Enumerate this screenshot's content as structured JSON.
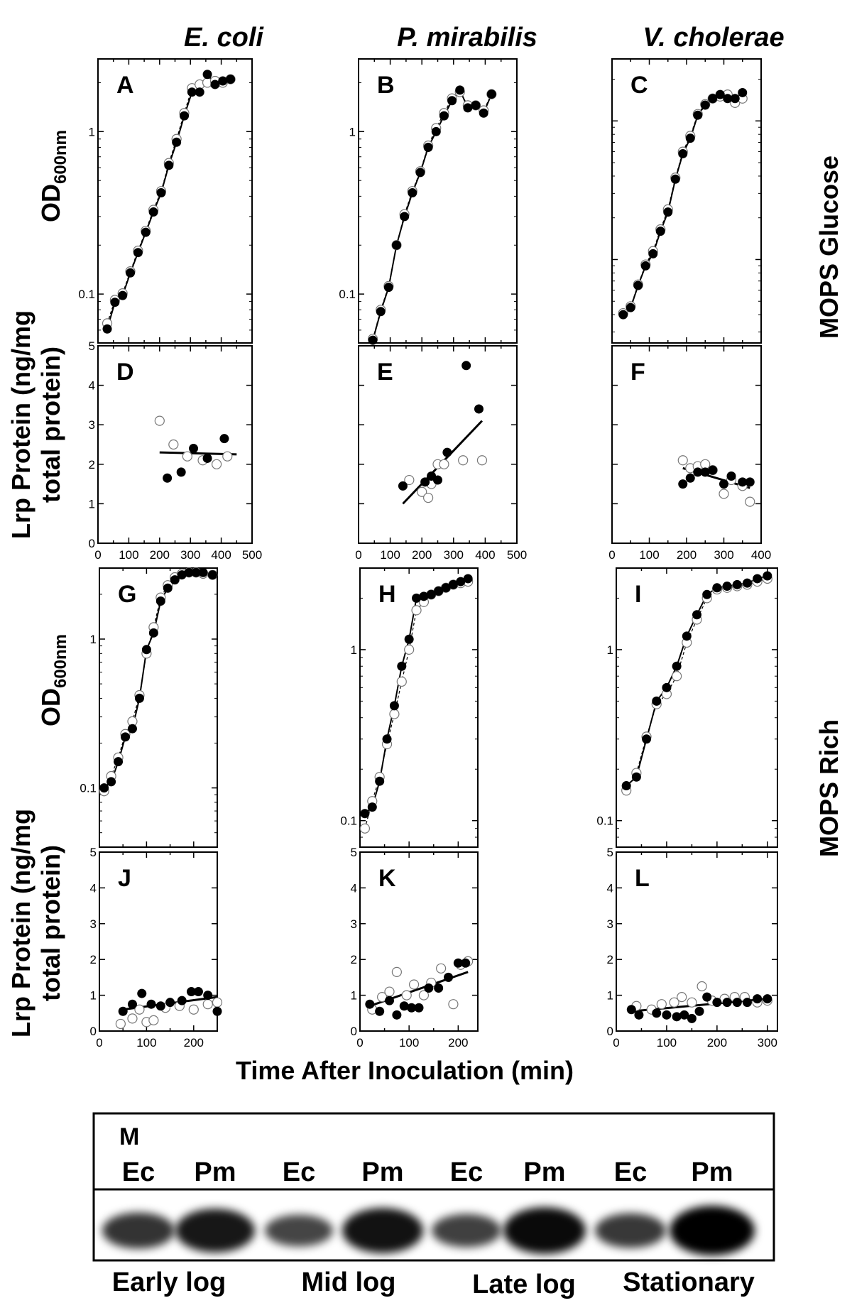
{
  "column_titles": [
    "E. coli",
    "P. mirabilis",
    "V. cholerae"
  ],
  "row_titles": {
    "glucose": "MOPS Glucose",
    "rich": "MOPS Rich"
  },
  "y_labels": {
    "od_main": "OD",
    "od_sub": "600nm",
    "lrp_line1": "Lrp Protein (ng/mg",
    "lrp_line2": "total protein)"
  },
  "x_axis_title": "Time After Inoculation (min)",
  "chart_data": [
    {
      "panel": "A",
      "type": "line",
      "group": "od",
      "medium": "MOPS Glucose",
      "organism": "E. coli",
      "yscale": "log",
      "xlim": [
        0,
        500
      ],
      "ylim": [
        0.05,
        2.8
      ],
      "ytick_labels": [
        "0.1",
        "1"
      ],
      "ytick_values": [
        0.1,
        1
      ],
      "series": [
        {
          "name": "filled",
          "x": [
            30,
            55,
            80,
            105,
            130,
            155,
            180,
            205,
            230,
            255,
            280,
            305,
            330,
            355,
            380,
            405,
            430
          ],
          "y": [
            0.061,
            0.089,
            0.098,
            0.135,
            0.18,
            0.24,
            0.32,
            0.42,
            0.62,
            0.86,
            1.25,
            1.75,
            1.75,
            2.25,
            1.95,
            2.05,
            2.1
          ]
        },
        {
          "name": "open",
          "x": [
            30,
            55,
            80,
            105,
            130,
            155,
            180,
            205,
            230,
            255,
            280,
            305,
            330,
            355,
            380,
            405,
            430
          ],
          "y": [
            0.066,
            0.092,
            0.101,
            0.138,
            0.185,
            0.245,
            0.33,
            0.43,
            0.64,
            0.9,
            1.3,
            1.85,
            1.95,
            2.0,
            2.05,
            2.0,
            2.1
          ]
        }
      ]
    },
    {
      "panel": "B",
      "type": "line",
      "group": "od",
      "medium": "MOPS Glucose",
      "organism": "P. mirabilis",
      "yscale": "log",
      "xlim": [
        0,
        500
      ],
      "ylim": [
        0.05,
        2.8
      ],
      "ytick_labels": [
        "0.1",
        "1"
      ],
      "ytick_values": [
        0.1,
        1
      ],
      "series": [
        {
          "name": "filled",
          "x": [
            45,
            70,
            95,
            120,
            145,
            170,
            195,
            220,
            245,
            270,
            295,
            320,
            345,
            370,
            395,
            420
          ],
          "y": [
            0.052,
            0.078,
            0.11,
            0.2,
            0.3,
            0.42,
            0.56,
            0.8,
            1.0,
            1.25,
            1.55,
            1.8,
            1.4,
            1.45,
            1.3,
            1.7
          ]
        },
        {
          "name": "open",
          "x": [
            45,
            70,
            95,
            120,
            145,
            170,
            195,
            220,
            245,
            270,
            295,
            320,
            345,
            370,
            395,
            420
          ],
          "y": [
            0.053,
            0.08,
            0.112,
            0.2,
            0.31,
            0.43,
            0.57,
            0.82,
            1.05,
            1.3,
            1.6,
            1.75,
            1.45,
            1.45,
            1.35,
            1.7
          ]
        }
      ]
    },
    {
      "panel": "C",
      "type": "line",
      "group": "od",
      "medium": "MOPS Glucose",
      "organism": "V. cholerae",
      "yscale": "log",
      "xlim": [
        0,
        400
      ],
      "ylim": [
        0.025,
        2.8
      ],
      "ytick_labels": [],
      "ytick_values": [
        0.1,
        1
      ],
      "series": [
        {
          "name": "filled",
          "x": [
            30,
            50,
            70,
            90,
            110,
            130,
            150,
            170,
            190,
            210,
            230,
            250,
            270,
            290,
            310,
            330,
            350
          ],
          "y": [
            0.04,
            0.045,
            0.065,
            0.09,
            0.11,
            0.16,
            0.22,
            0.38,
            0.58,
            0.75,
            1.1,
            1.3,
            1.45,
            1.55,
            1.45,
            1.45,
            1.6
          ]
        },
        {
          "name": "open",
          "x": [
            30,
            50,
            70,
            90,
            110,
            130,
            150,
            170,
            190,
            210,
            230,
            250,
            270,
            290,
            310,
            330,
            350
          ],
          "y": [
            0.041,
            0.046,
            0.066,
            0.092,
            0.115,
            0.165,
            0.23,
            0.39,
            0.6,
            0.78,
            1.12,
            1.32,
            1.45,
            1.5,
            1.55,
            1.35,
            1.45
          ]
        }
      ]
    },
    {
      "panel": "D",
      "type": "scatter",
      "group": "lrp",
      "medium": "MOPS Glucose",
      "organism": "E. coli",
      "xlim": [
        0,
        500
      ],
      "ylim": [
        0,
        5
      ],
      "xtick_labels": [
        "0",
        "100",
        "200",
        "300",
        "400",
        "500"
      ],
      "ytick_labels": [
        "0",
        "1",
        "2",
        "3",
        "4",
        "5"
      ],
      "series": [
        {
          "name": "filled",
          "x": [
            225,
            270,
            310,
            355,
            410
          ],
          "y": [
            1.65,
            1.8,
            2.4,
            2.15,
            2.65
          ]
        },
        {
          "name": "open",
          "x": [
            200,
            245,
            290,
            340,
            385,
            420
          ],
          "y": [
            3.1,
            2.5,
            2.2,
            2.1,
            2.0,
            2.2
          ]
        }
      ],
      "trendline": {
        "x": [
          200,
          450
        ],
        "y": [
          2.3,
          2.25
        ]
      }
    },
    {
      "panel": "E",
      "type": "scatter",
      "group": "lrp",
      "medium": "MOPS Glucose",
      "organism": "P. mirabilis",
      "xlim": [
        0,
        500
      ],
      "ylim": [
        0,
        5
      ],
      "xtick_labels": [
        "0",
        "100",
        "200",
        "300",
        "400",
        "500"
      ],
      "ytick_labels": [],
      "series": [
        {
          "name": "filled",
          "x": [
            140,
            210,
            230,
            250,
            280,
            340,
            380
          ],
          "y": [
            1.45,
            1.55,
            1.7,
            1.6,
            2.3,
            4.5,
            3.4
          ]
        },
        {
          "name": "open",
          "x": [
            160,
            200,
            220,
            230,
            250,
            270,
            330,
            390
          ],
          "y": [
            1.6,
            1.3,
            1.15,
            1.5,
            2.0,
            2.0,
            2.1,
            2.1
          ]
        }
      ],
      "trendline": {
        "x": [
          140,
          390
        ],
        "y": [
          1.0,
          3.1
        ]
      }
    },
    {
      "panel": "F",
      "type": "scatter",
      "group": "lrp",
      "medium": "MOPS Glucose",
      "organism": "V. cholerae",
      "xlim": [
        0,
        400
      ],
      "ylim": [
        0,
        5
      ],
      "xtick_labels": [
        "0",
        "100",
        "200",
        "300",
        "400"
      ],
      "ytick_labels": [],
      "series": [
        {
          "name": "filled",
          "x": [
            190,
            210,
            230,
            250,
            270,
            300,
            320,
            350,
            370
          ],
          "y": [
            1.5,
            1.65,
            1.8,
            1.8,
            1.85,
            1.5,
            1.7,
            1.55,
            1.55
          ]
        },
        {
          "name": "open",
          "x": [
            190,
            210,
            230,
            250,
            270,
            300,
            320,
            350,
            370
          ],
          "y": [
            2.1,
            1.9,
            1.95,
            2.0,
            1.85,
            1.25,
            1.6,
            1.45,
            1.05
          ]
        }
      ],
      "trendline": {
        "x": [
          190,
          370
        ],
        "y": [
          1.9,
          1.4
        ]
      }
    },
    {
      "panel": "G",
      "type": "line",
      "group": "od",
      "medium": "MOPS Rich",
      "organism": "E. coli",
      "yscale": "log",
      "xlim": [
        0,
        250
      ],
      "ylim": [
        0.04,
        3.0
      ],
      "ytick_labels": [
        "0.1",
        "1"
      ],
      "ytick_values": [
        0.1,
        1
      ],
      "series": [
        {
          "name": "filled",
          "x": [
            10,
            25,
            40,
            55,
            70,
            85,
            100,
            115,
            130,
            145,
            160,
            175,
            190,
            205,
            220,
            240
          ],
          "y": [
            0.1,
            0.11,
            0.15,
            0.22,
            0.25,
            0.4,
            0.85,
            1.1,
            1.8,
            2.2,
            2.5,
            2.7,
            2.8,
            2.8,
            2.8,
            2.7
          ]
        },
        {
          "name": "open",
          "x": [
            10,
            25,
            40,
            55,
            70,
            85,
            100,
            115,
            130,
            145,
            160,
            175,
            190,
            205,
            220,
            240
          ],
          "y": [
            0.095,
            0.12,
            0.16,
            0.23,
            0.28,
            0.42,
            0.8,
            1.2,
            1.9,
            2.3,
            2.6,
            2.75,
            2.8,
            2.8,
            2.75,
            2.7
          ]
        }
      ]
    },
    {
      "panel": "H",
      "type": "line",
      "group": "od",
      "medium": "MOPS Rich",
      "organism": "P. mirabilis",
      "yscale": "log",
      "xlim": [
        0,
        240
      ],
      "ylim": [
        0.07,
        3.0
      ],
      "ytick_labels": [
        "0.1",
        "1"
      ],
      "ytick_values": [
        0.1,
        1
      ],
      "series": [
        {
          "name": "filled",
          "x": [
            10,
            25,
            40,
            55,
            70,
            85,
            100,
            115,
            130,
            145,
            160,
            175,
            190,
            205,
            220
          ],
          "y": [
            0.11,
            0.12,
            0.17,
            0.3,
            0.47,
            0.8,
            1.15,
            2.0,
            2.05,
            2.1,
            2.2,
            2.3,
            2.4,
            2.5,
            2.6
          ]
        },
        {
          "name": "open",
          "x": [
            10,
            25,
            40,
            55,
            70,
            85,
            100,
            115,
            130,
            145,
            160,
            175,
            190,
            205,
            220
          ],
          "y": [
            0.09,
            0.13,
            0.18,
            0.28,
            0.42,
            0.65,
            1.0,
            1.7,
            1.9,
            2.1,
            2.2,
            2.3,
            2.4,
            2.45,
            2.5
          ]
        }
      ]
    },
    {
      "panel": "I",
      "type": "line",
      "group": "od",
      "medium": "MOPS Rich",
      "organism": "V. cholerae",
      "yscale": "log",
      "xlim": [
        0,
        320
      ],
      "ylim": [
        0.07,
        3.0
      ],
      "ytick_labels": [
        "0.1",
        "1"
      ],
      "ytick_values": [
        0.1,
        1
      ],
      "series": [
        {
          "name": "filled",
          "x": [
            20,
            40,
            60,
            80,
            100,
            120,
            140,
            160,
            180,
            200,
            220,
            240,
            260,
            280,
            300
          ],
          "y": [
            0.16,
            0.18,
            0.3,
            0.5,
            0.6,
            0.8,
            1.2,
            1.6,
            2.1,
            2.3,
            2.35,
            2.4,
            2.45,
            2.6,
            2.7
          ]
        },
        {
          "name": "open",
          "x": [
            20,
            40,
            60,
            80,
            100,
            120,
            140,
            160,
            180,
            200,
            220,
            240,
            260,
            280,
            300
          ],
          "y": [
            0.15,
            0.19,
            0.31,
            0.48,
            0.55,
            0.7,
            1.1,
            1.5,
            2.0,
            2.25,
            2.3,
            2.35,
            2.4,
            2.5,
            2.6
          ]
        }
      ]
    },
    {
      "panel": "J",
      "type": "scatter",
      "group": "lrp",
      "medium": "MOPS Rich",
      "organism": "E. coli",
      "xlim": [
        0,
        250
      ],
      "ylim": [
        0,
        5
      ],
      "xtick_labels": [
        "0",
        "100",
        "200"
      ],
      "ytick_labels": [
        "0",
        "1",
        "2",
        "3",
        "4",
        "5"
      ],
      "series": [
        {
          "name": "filled",
          "x": [
            50,
            70,
            90,
            110,
            130,
            150,
            175,
            195,
            210,
            230,
            250
          ],
          "y": [
            0.55,
            0.75,
            1.05,
            0.75,
            0.7,
            0.8,
            0.85,
            1.1,
            1.1,
            1.0,
            0.55
          ]
        },
        {
          "name": "open",
          "x": [
            45,
            70,
            85,
            100,
            115,
            140,
            170,
            200,
            230,
            250
          ],
          "y": [
            0.2,
            0.35,
            0.6,
            0.25,
            0.3,
            0.65,
            0.7,
            0.6,
            0.75,
            0.8
          ]
        }
      ],
      "trendline": {
        "x": [
          50,
          250
        ],
        "y": [
          0.6,
          0.95
        ]
      }
    },
    {
      "panel": "K",
      "type": "scatter",
      "group": "lrp",
      "medium": "MOPS Rich",
      "organism": "P. mirabilis",
      "xlim": [
        0,
        240
      ],
      "ylim": [
        0,
        5
      ],
      "xtick_labels": [
        "0",
        "100",
        "200"
      ],
      "ytick_labels": [
        "0",
        "1",
        "2",
        "3",
        "4",
        "5"
      ],
      "series": [
        {
          "name": "filled",
          "x": [
            20,
            40,
            60,
            75,
            90,
            105,
            120,
            140,
            160,
            180,
            200,
            215
          ],
          "y": [
            0.75,
            0.55,
            0.85,
            0.45,
            0.7,
            0.65,
            0.65,
            1.2,
            1.2,
            1.5,
            1.9,
            1.9
          ]
        },
        {
          "name": "open",
          "x": [
            25,
            45,
            60,
            75,
            95,
            110,
            130,
            145,
            165,
            190,
            205,
            220
          ],
          "y": [
            0.6,
            0.95,
            1.1,
            1.65,
            1.0,
            1.3,
            1.0,
            1.35,
            1.75,
            0.75,
            1.85,
            1.95
          ]
        }
      ],
      "trendline": {
        "x": [
          20,
          220
        ],
        "y": [
          0.7,
          1.65
        ]
      }
    },
    {
      "panel": "L",
      "type": "scatter",
      "group": "lrp",
      "medium": "MOPS Rich",
      "organism": "V. cholerae",
      "xlim": [
        0,
        320
      ],
      "ylim": [
        0,
        5
      ],
      "xtick_labels": [
        "0",
        "100",
        "200",
        "300"
      ],
      "ytick_labels": [
        "0",
        "1",
        "2",
        "3",
        "4",
        "5"
      ],
      "series": [
        {
          "name": "filled",
          "x": [
            30,
            45,
            80,
            100,
            120,
            135,
            150,
            165,
            180,
            200,
            220,
            240,
            260,
            280,
            300
          ],
          "y": [
            0.6,
            0.45,
            0.5,
            0.45,
            0.4,
            0.45,
            0.35,
            0.55,
            0.95,
            0.8,
            0.8,
            0.8,
            0.8,
            0.9,
            0.9
          ]
        },
        {
          "name": "open",
          "x": [
            40,
            70,
            90,
            115,
            130,
            150,
            170,
            190,
            215,
            235,
            255,
            280,
            300
          ],
          "y": [
            0.7,
            0.6,
            0.75,
            0.8,
            0.95,
            0.8,
            1.25,
            0.85,
            0.9,
            0.95,
            0.95,
            0.8,
            0.85
          ]
        }
      ],
      "trendline": {
        "x": [
          30,
          300
        ],
        "y": [
          0.55,
          0.9
        ]
      }
    }
  ],
  "blot": {
    "panel": "M",
    "lane_labels": [
      "Ec",
      "Pm",
      "Ec",
      "Pm",
      "Ec",
      "Pm",
      "Ec",
      "Pm"
    ],
    "band_intensity": [
      0.55,
      0.8,
      0.4,
      0.85,
      0.45,
      0.9,
      0.5,
      1.0
    ],
    "stages": [
      "Early log",
      "Mid log",
      "Late log",
      "Stationary"
    ]
  }
}
